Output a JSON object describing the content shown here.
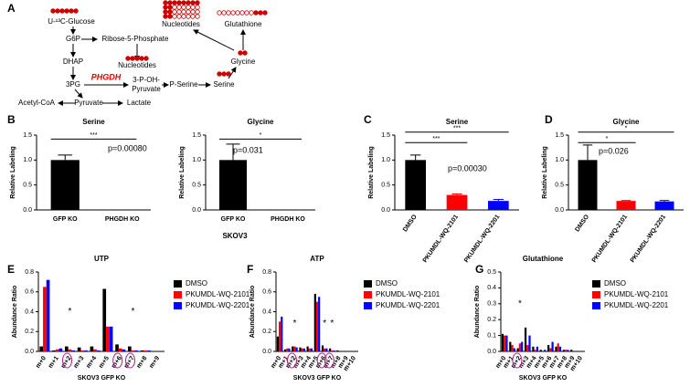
{
  "pathway": {
    "label": "A",
    "nodes": [
      "U-¹³C-Glucose",
      "G6P",
      "Ribose-5-Phosphate",
      "Nucleotides",
      "DHAP",
      "3PG",
      "PHGDH",
      "3-P-OH-",
      "Pyruvate",
      "P-Serine",
      "Serine",
      "Glycine",
      "Nucleotides",
      "Glutathione",
      "Acetyl-CoA",
      "Pyruvate",
      "Lactate"
    ]
  },
  "shared_labels": {
    "skov3": "SKOV3"
  },
  "chart_data": [
    {
      "type": "bar",
      "label": "B",
      "title": "Serine",
      "ylabel": "Relative Labeling",
      "categories": [
        "GFP KO",
        "PHGDH KO"
      ],
      "ylim": [
        0,
        1.5
      ],
      "yticks": [
        {
          "value": 0,
          "label": "0.0"
        },
        {
          "value": 0.5,
          "label": "0.5"
        },
        {
          "value": 1,
          "label": "1.0"
        },
        {
          "value": 1.5,
          "label": "1.5"
        }
      ],
      "series": [
        {
          "color": "#000000",
          "values": [
            1.0,
            0
          ],
          "errors": [
            0.1,
            0
          ]
        }
      ],
      "significance": [
        "***"
      ],
      "p_value": "p=0.00080"
    },
    {
      "type": "bar",
      "title": "Glycine",
      "ylabel": "Relative Labeling",
      "categories": [
        "GFP KO",
        "PHGDH KO"
      ],
      "ylim": [
        0,
        1.5
      ],
      "yticks": [
        {
          "value": 0,
          "label": "0.0"
        },
        {
          "value": 0.5,
          "label": "0.5"
        },
        {
          "value": 1,
          "label": "1.0"
        },
        {
          "value": 1.5,
          "label": "1.5"
        }
      ],
      "series": [
        {
          "color": "#000000",
          "values": [
            1.0,
            0
          ],
          "errors": [
            0.32,
            0
          ]
        }
      ],
      "significance": [
        "*"
      ],
      "p_value": "p=0.031"
    },
    {
      "type": "bar",
      "label": "C",
      "title": "Serine",
      "ylabel": "Relative Labeling",
      "categories": [
        "DMSO",
        "PKUMDL-WQ-2101",
        "PKUMDL-WQ-2201"
      ],
      "ylim": [
        0,
        1.5
      ],
      "yticks": [
        {
          "value": 0,
          "label": "0.0"
        },
        {
          "value": 0.5,
          "label": "0.5"
        },
        {
          "value": 1,
          "label": "1.0"
        },
        {
          "value": 1.5,
          "label": "1.5"
        }
      ],
      "series": [
        {
          "colors": [
            "#000000",
            "#ff0000",
            "#0000ff"
          ],
          "values": [
            1.0,
            0.3,
            0.18
          ],
          "errors": [
            0.1,
            0.02,
            0.03
          ]
        }
      ],
      "significance": [
        "***",
        "***"
      ],
      "p_value": "p=0.00030"
    },
    {
      "type": "bar",
      "label": "D",
      "title": "Glycine",
      "ylabel": "Relative Labeling",
      "categories": [
        "DMSO",
        "PKUMDL-WQ-2101",
        "PKUMDL-WQ-2201"
      ],
      "ylim": [
        0,
        1.5
      ],
      "yticks": [
        {
          "value": 0,
          "label": "0.0"
        },
        {
          "value": 0.5,
          "label": "0.5"
        },
        {
          "value": 1,
          "label": "1.0"
        },
        {
          "value": 1.5,
          "label": "1.5"
        }
      ],
      "series": [
        {
          "colors": [
            "#000000",
            "#ff0000",
            "#0000ff"
          ],
          "values": [
            1.0,
            0.18,
            0.17
          ],
          "errors": [
            0.3,
            0.01,
            0.02
          ]
        }
      ],
      "significance": [
        "*",
        "*"
      ],
      "p_value": "p=0.026"
    },
    {
      "type": "bar",
      "label": "E",
      "title": "UTP",
      "ylabel": "Abundance Ratio",
      "xlabel": "SKOV3 GFP KO",
      "categories": [
        "m+0",
        "m+1",
        "m+2",
        "m+3",
        "m+4",
        "m+5",
        "m+6",
        "m+7",
        "m+8",
        "m+9"
      ],
      "ylim": [
        0,
        0.8
      ],
      "yticks": [
        {
          "value": 0,
          "label": "0.0"
        },
        0.2,
        0.4,
        0.6,
        0.8
      ],
      "series": [
        {
          "name": "DMSO",
          "color": "#000000",
          "values": [
            0.05,
            0.01,
            0.05,
            0.04,
            0.05,
            0.63,
            0.07,
            0.05,
            0.01,
            0
          ]
        },
        {
          "name": "PKUMDL-WQ-2101",
          "color": "#ff0000",
          "values": [
            0.65,
            0.02,
            0.02,
            0.01,
            0.02,
            0.25,
            0.03,
            0.01,
            0.01,
            0
          ]
        },
        {
          "name": "PKUMDL-WQ-2201",
          "color": "#0000ff",
          "values": [
            0.72,
            0.03,
            0.01,
            0.01,
            0.01,
            0.25,
            0.02,
            0.01,
            0.01,
            0
          ]
        }
      ],
      "significance": [
        "*",
        "*"
      ]
    },
    {
      "type": "bar",
      "label": "F",
      "title": "ATP",
      "ylabel": "Abundance Ratio",
      "xlabel": "SKOV3 GFP KO",
      "categories": [
        "m+0",
        "m+1",
        "m+2",
        "m+3",
        "m+4",
        "m+5",
        "m+6",
        "m+7",
        "m+8",
        "m+9",
        "m+10"
      ],
      "ylim": [
        0,
        0.8
      ],
      "yticks": [
        {
          "value": 0,
          "label": "0.0"
        },
        0.2,
        0.4,
        0.6,
        0.8
      ],
      "series": [
        {
          "name": "DMSO",
          "color": "#000000",
          "values": [
            0.15,
            0.02,
            0.05,
            0.04,
            0.05,
            0.58,
            0.06,
            0.03,
            0.01,
            0,
            0
          ]
        },
        {
          "name": "PKUMDL-WQ-2101",
          "color": "#ff0000",
          "values": [
            0.3,
            0.03,
            0.05,
            0.03,
            0.03,
            0.5,
            0.03,
            0.01,
            0,
            0,
            0
          ]
        },
        {
          "name": "PKUMDL-WQ-2201",
          "color": "#0000ff",
          "values": [
            0.35,
            0.03,
            0.04,
            0.03,
            0.03,
            0.55,
            0.03,
            0.01,
            0,
            0,
            0
          ]
        }
      ],
      "significance": [
        "*",
        "*",
        "*"
      ]
    },
    {
      "type": "bar",
      "label": "G",
      "title": "Glutathione",
      "ylabel": "Abundance Ratio",
      "xlabel": "SKOV3 GFP KO",
      "categories": [
        "m+0",
        "m+1",
        "m+2",
        "m+3",
        "m+4",
        "m+5",
        "m+6",
        "m+7",
        "m+8",
        "m+9",
        "m+10"
      ],
      "ylim": [
        0,
        0.5
      ],
      "yticks": [
        {
          "value": 0,
          "label": "0.0"
        },
        0.1,
        0.2,
        0.3,
        0.4,
        0.5
      ],
      "series": [
        {
          "name": "DMSO",
          "color": "#000000",
          "values": [
            0.11,
            0.06,
            0.02,
            0.15,
            0.03,
            0.01,
            0.04,
            0.03,
            0.01,
            0.01,
            0
          ]
        },
        {
          "name": "PKUMDL-WQ-2101",
          "color": "#ff0000",
          "values": [
            0.1,
            0.04,
            0.05,
            0.04,
            0.01,
            0,
            0.02,
            0.05,
            0.01,
            0,
            0
          ]
        },
        {
          "name": "PKUMDL-WQ-2201",
          "color": "#0000ff",
          "values": [
            0.1,
            0.02,
            0.06,
            0.1,
            0.03,
            0.01,
            0.06,
            0.03,
            0.01,
            0,
            0
          ]
        }
      ],
      "significance": [
        "*"
      ]
    }
  ]
}
